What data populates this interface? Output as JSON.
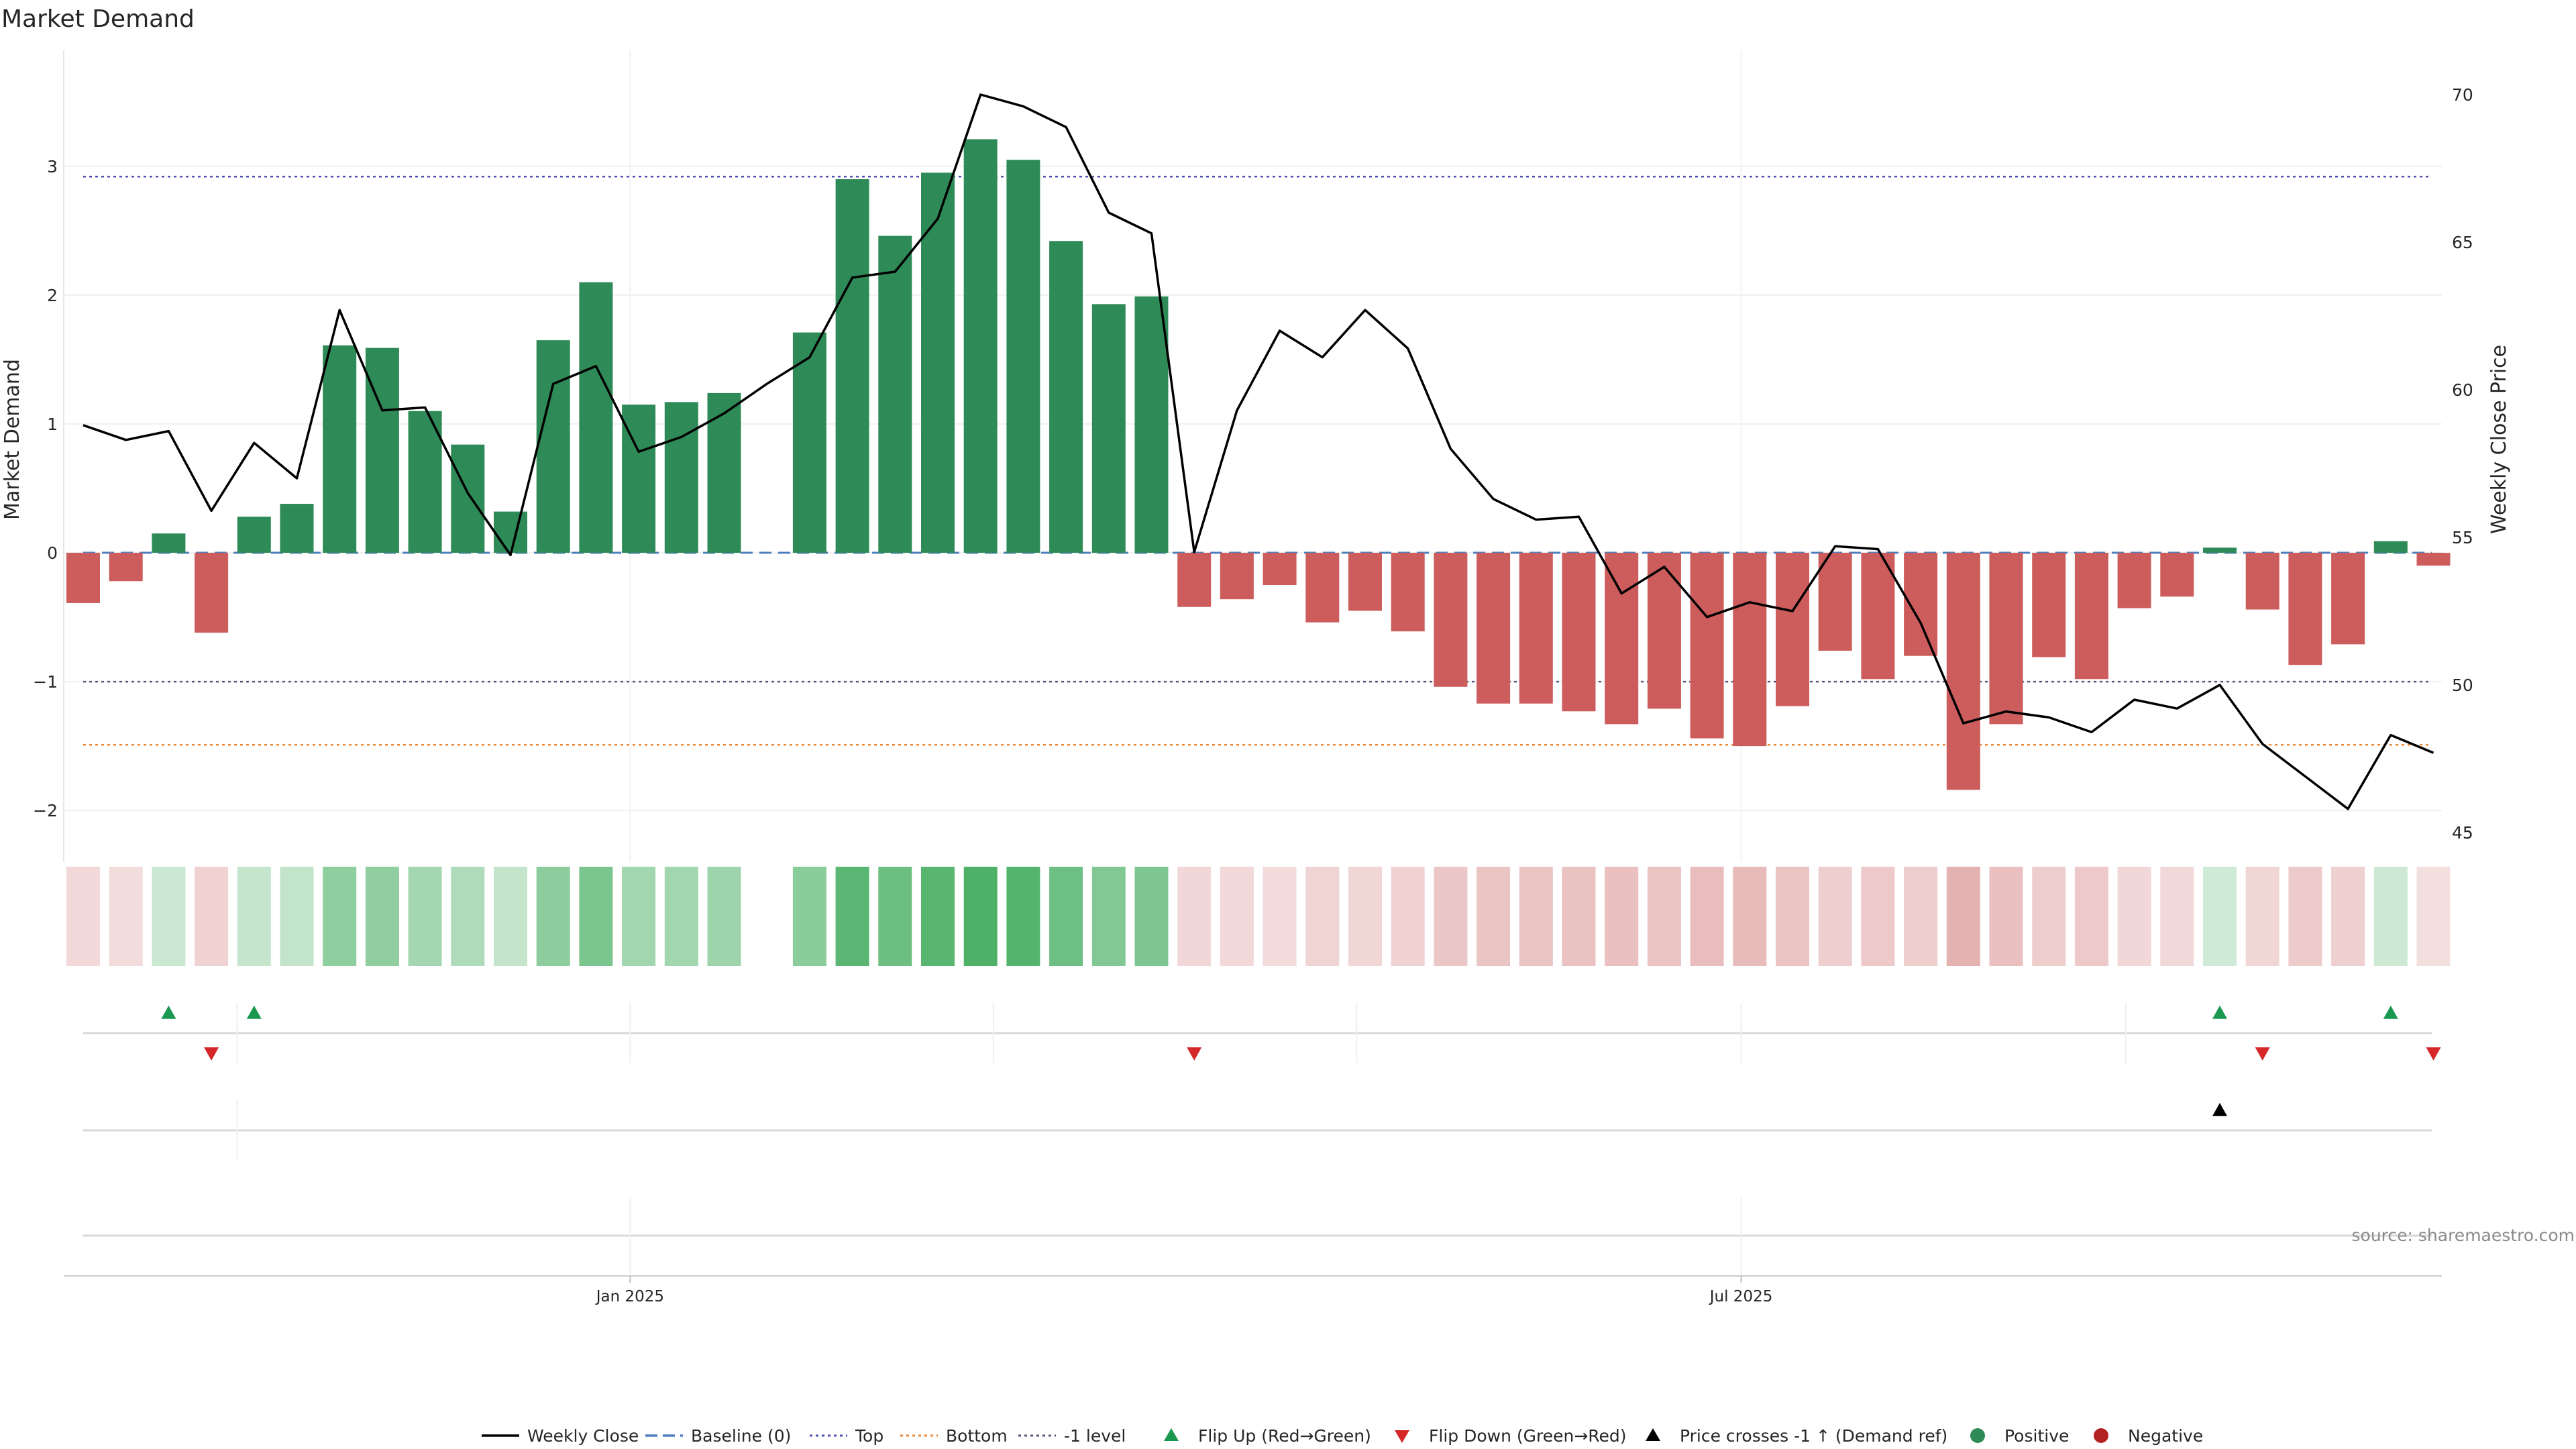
{
  "chart_data": {
    "type": "bar",
    "title": "Market Demand",
    "ylabel": "Market Demand",
    "y2label": "Weekly Close Price",
    "ylim": [
      -2.4,
      3.9
    ],
    "y2lim": [
      44,
      71.5
    ],
    "yticks": [
      -2,
      -1,
      0,
      1,
      2,
      3
    ],
    "y2ticks": [
      45,
      50,
      55,
      60,
      65,
      70
    ],
    "x_tick_labels": [
      {
        "label": "Jan 2025",
        "week_index": 12.8
      },
      {
        "label": "Jul 2025",
        "week_index": 38.8
      }
    ],
    "reference_lines": {
      "top": 2.92,
      "bottom": -1.49,
      "minus_one": -1.0,
      "baseline": 0
    },
    "demand": [
      -0.39,
      -0.22,
      0.15,
      -0.62,
      0.28,
      0.38,
      1.61,
      1.59,
      1.1,
      0.84,
      0.32,
      1.65,
      2.1,
      1.15,
      1.17,
      1.24,
      null,
      1.71,
      2.9,
      2.46,
      2.95,
      3.21,
      3.05,
      2.42,
      1.93,
      1.99,
      -0.42,
      -0.36,
      -0.25,
      -0.54,
      -0.45,
      -0.61,
      -1.04,
      -1.17,
      -1.17,
      -1.23,
      -1.33,
      -1.21,
      -1.44,
      -1.5,
      -1.19,
      -0.76,
      -0.98,
      -0.8,
      -1.84,
      -1.33,
      -0.81,
      -0.98,
      -0.43,
      -0.34,
      0.04,
      -0.44,
      -0.87,
      -0.71,
      0.09,
      -0.1
    ],
    "weekly_close": [
      58.8,
      58.3,
      58.6,
      55.9,
      58.2,
      57.0,
      62.7,
      59.3,
      59.4,
      56.5,
      54.4,
      60.2,
      60.8,
      57.9,
      58.4,
      59.2,
      60.2,
      61.1,
      63.8,
      64.0,
      65.8,
      70.0,
      69.6,
      68.9,
      66.0,
      65.3,
      54.5,
      59.3,
      62.0,
      61.1,
      62.7,
      61.4,
      58.0,
      56.3,
      55.6,
      55.7,
      53.1,
      54.0,
      52.3,
      52.8,
      52.5,
      54.7,
      54.6,
      52.1,
      48.7,
      49.1,
      48.9,
      48.4,
      49.5,
      49.2,
      50.0,
      48.0,
      46.9,
      45.8,
      48.3,
      47.7
    ],
    "flip_up_weeks": [
      2,
      4,
      50,
      54
    ],
    "flip_down_weeks": [
      3,
      26,
      51,
      55
    ],
    "price_cross_weeks": [
      50
    ],
    "source": "source: sharemaestro.com",
    "legend": {
      "placement": "bottom-center",
      "items": [
        {
          "label": "Weekly Close",
          "symbol": "line",
          "color": "#000000"
        },
        {
          "label": "Baseline (0)",
          "symbol": "dash",
          "color": "#4f7fbf"
        },
        {
          "label": "Top",
          "symbol": "dot",
          "color": "#4f4fb0"
        },
        {
          "label": "Bottom",
          "symbol": "dot",
          "color": "#e8893a"
        },
        {
          "label": "-1 level",
          "symbol": "dot",
          "color": "#555577"
        },
        {
          "label": "Flip Up (Red→Green)",
          "symbol": "tri-up",
          "color": "#1a9850"
        },
        {
          "label": "Flip Down (Green→Red)",
          "symbol": "tri-down",
          "color": "#d62728"
        },
        {
          "label": "Price crosses -1 ↑ (Demand ref)",
          "symbol": "tri-up",
          "color": "#000000"
        },
        {
          "label": "Positive",
          "symbol": "circle",
          "color": "#2e8b57"
        },
        {
          "label": "Negative",
          "symbol": "circle",
          "color": "#b22222"
        }
      ]
    },
    "colors": {
      "positive": "#2e8b57",
      "negative": "#cd5c5c",
      "price": "#000000"
    }
  }
}
